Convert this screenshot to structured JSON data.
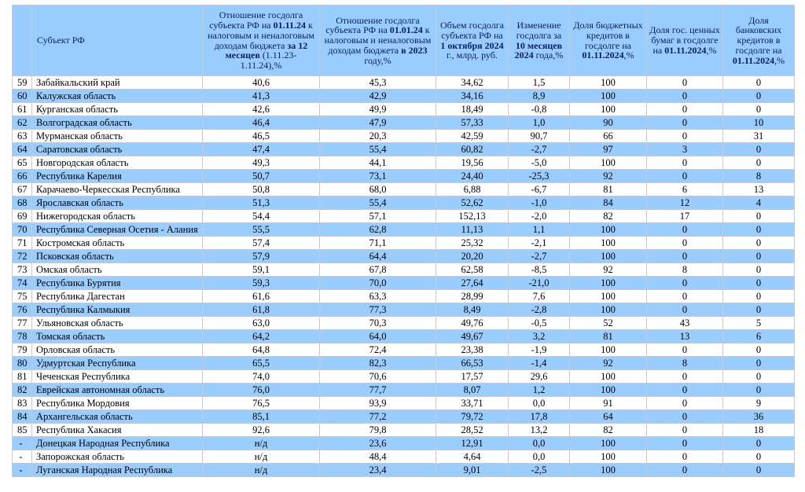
{
  "header": {
    "rank": "",
    "subject": "Субъект РФ",
    "col1": {
      "pre": "Отношение госдолга субъекта РФ на ",
      "b1": "01.11.24",
      "mid": " к налоговым и неналоговым доходам бюджета ",
      "b2": "за 12 месяцев",
      "post": " (1.11.23-1.11.24),%"
    },
    "col2": {
      "pre": "Отношение госдолга субъекта РФ на ",
      "b1": "01.01.24",
      "mid": " к налоговым и неналоговым доходам бюджета ",
      "b2": "в 2023",
      "post": " году,%"
    },
    "col3": {
      "pre": "Объем госдолга субъекта РФ на ",
      "b1": "1 октября 2024",
      "post": " г., млрд. руб."
    },
    "col4": {
      "pre": "Изменение госдолга за ",
      "b1": "10 месяцев 2024",
      "post": " года,%"
    },
    "col5": {
      "pre": "Доля бюджетных кредитов в госдолге на ",
      "b1": "01.11.2024",
      "post": ",%"
    },
    "col6": {
      "pre": "Доля гос. ценных бумаг в госдолге на ",
      "b1": "01.11.2024",
      "post": ",%"
    },
    "col7": {
      "pre": "Доля банковских кредитов в госдолге на ",
      "b1": "01.11.2024",
      "post": ",%"
    }
  },
  "rows": [
    [
      "59",
      "Забайкальский край",
      "40,6",
      "45,3",
      "34,62",
      "1,5",
      "100",
      "0",
      "0"
    ],
    [
      "60",
      "Калужская область",
      "41,3",
      "42,9",
      "34,16",
      "8,9",
      "100",
      "0",
      "0"
    ],
    [
      "61",
      "Курганская область",
      "42,6",
      "49,9",
      "18,49",
      "-0,8",
      "100",
      "0",
      "0"
    ],
    [
      "62",
      "Волгоградская область",
      "46,4",
      "47,9",
      "57,33",
      "1,0",
      "90",
      "0",
      "10"
    ],
    [
      "63",
      "Мурманская область",
      "46,5",
      "20,3",
      "42,59",
      "90,7",
      "66",
      "0",
      "31"
    ],
    [
      "64",
      "Саратовская область",
      "47,4",
      "55,4",
      "60,82",
      "-2,7",
      "97",
      "3",
      "0"
    ],
    [
      "65",
      "Новгородская область",
      "49,3",
      "44,1",
      "19,56",
      "-5,0",
      "100",
      "0",
      "0"
    ],
    [
      "66",
      "Республика Карелия",
      "50,7",
      "73,1",
      "24,40",
      "-25,3",
      "92",
      "0",
      "8"
    ],
    [
      "67",
      "Карачаево-Черкесская Республика",
      "50,8",
      "68,0",
      "6,88",
      "-6,7",
      "81",
      "6",
      "13"
    ],
    [
      "68",
      "Ярославская область",
      "51,3",
      "55,4",
      "52,62",
      "-1,0",
      "84",
      "12",
      "4"
    ],
    [
      "69",
      "Нижегородская область",
      "54,4",
      "57,1",
      "152,13",
      "-2,0",
      "82",
      "17",
      "0"
    ],
    [
      "70",
      "Республика Северная Осетия - Алания",
      "55,5",
      "62,8",
      "11,13",
      "1,1",
      "100",
      "0",
      "0"
    ],
    [
      "71",
      "Костромская область",
      "57,4",
      "71,1",
      "25,32",
      "-2,1",
      "100",
      "0",
      "0"
    ],
    [
      "72",
      "Псковская область",
      "57,9",
      "64,4",
      "20,20",
      "-2,7",
      "100",
      "0",
      "0"
    ],
    [
      "73",
      "Омская область",
      "59,1",
      "67,8",
      "62,58",
      "-8,5",
      "92",
      "8",
      "0"
    ],
    [
      "74",
      "Республика Бурятия",
      "59,3",
      "70,0",
      "27,64",
      "-21,0",
      "100",
      "0",
      "0"
    ],
    [
      "75",
      "Республика Дагестан",
      "61,6",
      "63,3",
      "28,99",
      "7,6",
      "100",
      "0",
      "0"
    ],
    [
      "76",
      "Республика Калмыкия",
      "61,8",
      "77,3",
      "8,49",
      "-2,8",
      "100",
      "0",
      "0"
    ],
    [
      "77",
      "Ульяновская область",
      "63,0",
      "70,3",
      "49,76",
      "-0,5",
      "52",
      "43",
      "5"
    ],
    [
      "78",
      "Томская область",
      "64,2",
      "64,0",
      "49,67",
      "3,2",
      "81",
      "13",
      "6"
    ],
    [
      "79",
      "Орловская область",
      "64,8",
      "72,4",
      "23,38",
      "-1,9",
      "100",
      "0",
      "0"
    ],
    [
      "80",
      "Удмуртская Республика",
      "65,5",
      "82,3",
      "66,53",
      "-1,4",
      "92",
      "8",
      "0"
    ],
    [
      "81",
      "Чеченская Республика",
      "74,0",
      "70,6",
      "17,57",
      "29,6",
      "100",
      "0",
      "0"
    ],
    [
      "82",
      "Еврейская автономная область",
      "76,0",
      "77,7",
      "8,07",
      "1,2",
      "100",
      "0",
      "0"
    ],
    [
      "83",
      "Республика Мордовия",
      "76,5",
      "93,9",
      "33,71",
      "0,0",
      "91",
      "0",
      "9"
    ],
    [
      "84",
      "Архангельская область",
      "85,1",
      "77,2",
      "79,72",
      "17,8",
      "64",
      "0",
      "36"
    ],
    [
      "85",
      "Республика Хакасия",
      "92,6",
      "79,8",
      "28,52",
      "13,2",
      "82",
      "0",
      "18"
    ],
    [
      "-",
      "Донецкая Народная Республика",
      "н/д",
      "23,6",
      "12,91",
      "0,0",
      "100",
      "0",
      "0"
    ],
    [
      "-",
      "Запорожская область",
      "н/д",
      "48,4",
      "4,64",
      "0,0",
      "100",
      "0",
      "0"
    ],
    [
      "-",
      "Луганская Народная Республика",
      "н/д",
      "23,4",
      "9,01",
      "-2,5",
      "100",
      "0",
      "0"
    ]
  ],
  "colors": {
    "header_bg": "#99ccff",
    "stripe_bg": "#99ccff",
    "header_text": "#0b1a66",
    "border": "#c9c9c9"
  }
}
